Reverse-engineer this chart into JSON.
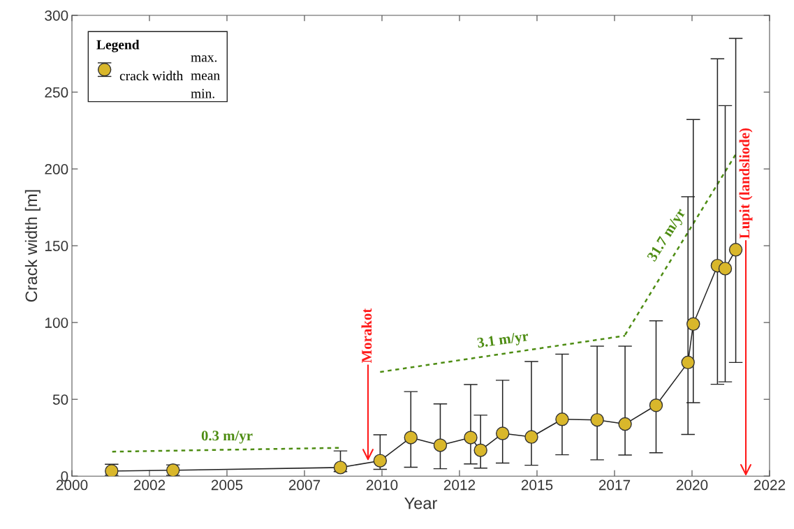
{
  "chart_data": {
    "type": "line",
    "xlabel": "Year",
    "ylabel": "Crack width [m]",
    "legend_title": "Legend",
    "legend": "top left",
    "marker": "circle",
    "line_style": "solid",
    "grid": false,
    "xlim": [
      2000,
      2022.5
    ],
    "xticks": [
      2000,
      {
        "value": 2002.5,
        "label": "2002"
      },
      2005,
      {
        "value": 2007.5,
        "label": "2007"
      },
      2010,
      {
        "value": 2012.5,
        "label": "2012"
      },
      2015,
      {
        "value": 2017.5,
        "label": "2017"
      },
      2020,
      {
        "value": 2022.5,
        "label": "2022"
      }
    ],
    "ylim": [
      0,
      300
    ],
    "yticks": [
      0,
      50,
      100,
      150,
      200,
      250,
      300
    ],
    "series": [
      {
        "name": "crack width",
        "color": "#d9b72b",
        "x": [
          2001.28,
          2003.26,
          2008.66,
          2009.94,
          2010.93,
          2011.88,
          2012.86,
          2013.18,
          2013.89,
          2014.82,
          2015.81,
          2016.94,
          2017.84,
          2018.84,
          2019.87,
          2020.04,
          2020.82,
          2021.07,
          2021.41
        ],
        "values": [
          3.3,
          3.8,
          5.6,
          10.0,
          25.1,
          20.1,
          25.1,
          16.8,
          27.8,
          25.5,
          37.0,
          36.6,
          33.9,
          46.1,
          74.0,
          99.0,
          137.0,
          135.1,
          147.4
        ],
        "errors": [
          [
            0.5,
            7.7
          ],
          [
            0.5,
            7.3
          ],
          [
            2.9,
            16.4
          ],
          [
            4.4,
            26.9
          ],
          [
            5.8,
            55.0
          ],
          [
            4.8,
            47.0
          ],
          [
            7.9,
            59.6
          ],
          [
            5.2,
            39.7
          ],
          [
            8.5,
            62.4
          ],
          [
            7.1,
            74.6
          ],
          [
            13.9,
            79.4
          ],
          [
            10.6,
            84.6
          ],
          [
            13.7,
            84.6
          ],
          [
            15.2,
            101.1
          ],
          [
            27.1,
            181.9
          ],
          [
            47.8,
            232.2
          ],
          [
            59.8,
            271.7
          ],
          [
            61.4,
            241.2
          ],
          [
            74.0,
            285.0
          ]
        ]
      },
      {
        "color": "#4d8c12",
        "marker": "none",
        "line_style": "dashed",
        "x": [
          2001.3,
          2008.66
        ],
        "values": [
          15.9,
          18.4
        ]
      },
      {
        "color": "#4d8c12",
        "marker": "none",
        "line_style": "dashed",
        "x": [
          2009.94,
          2017.84
        ],
        "values": [
          67.8,
          91.4
        ]
      },
      {
        "color": "#4d8c12",
        "marker": "none",
        "line_style": "dashed",
        "x": [
          2017.84,
          2021.41
        ],
        "values": [
          92.0,
          209.5
        ]
      }
    ],
    "annotations": [
      {
        "text": "0.3 m/yr",
        "x": 2005.0,
        "y": 17.2
      },
      {
        "text": "3.1 m/yr",
        "x": 2013.9,
        "y": 79.6
      },
      {
        "text": "31.7 m/yr",
        "x": 2019.6,
        "y": 150.7
      },
      "Morakot",
      "Lupit (landsliode)",
      "max.",
      "mean",
      "min."
    ]
  }
}
